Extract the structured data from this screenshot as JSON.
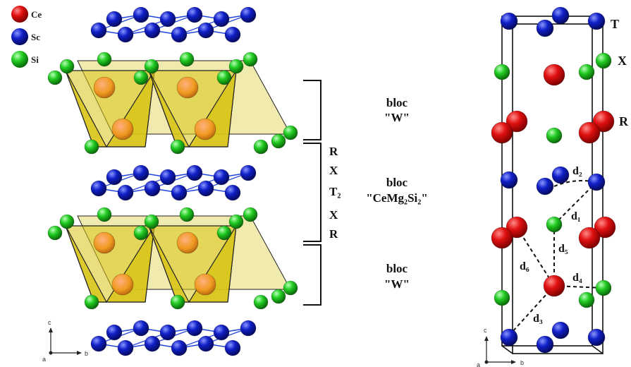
{
  "legend": [
    {
      "label": "Ce",
      "color": "#e01010"
    },
    {
      "label": "Sc",
      "color": "#1020c8"
    },
    {
      "label": "Si",
      "color": "#22cc22"
    }
  ],
  "blocs": {
    "top": {
      "line1": "bloc",
      "line2": "\"W\""
    },
    "middle": {
      "line1": "bloc",
      "line2": "\"CeMg₂Si₂\""
    },
    "bottom": {
      "line1": "bloc",
      "line2": "\"W\""
    }
  },
  "sequence": [
    "R",
    "X",
    "T₂",
    "X",
    "R"
  ],
  "sites": {
    "t": "T",
    "x": "X",
    "r": "R"
  },
  "distances": [
    "d₁",
    "d₂",
    "d₃",
    "d₄",
    "d₅",
    "d₆"
  ],
  "axes_left": {
    "c": "c",
    "a": "a",
    "b": "b"
  },
  "axes_right": {
    "c": "c",
    "a": "a",
    "b": "b"
  },
  "colors": {
    "ce": "#e01010",
    "sc": "#1020c8",
    "si": "#22cc22",
    "polyhedra": "#d8c418",
    "bond": "#2244dd"
  }
}
